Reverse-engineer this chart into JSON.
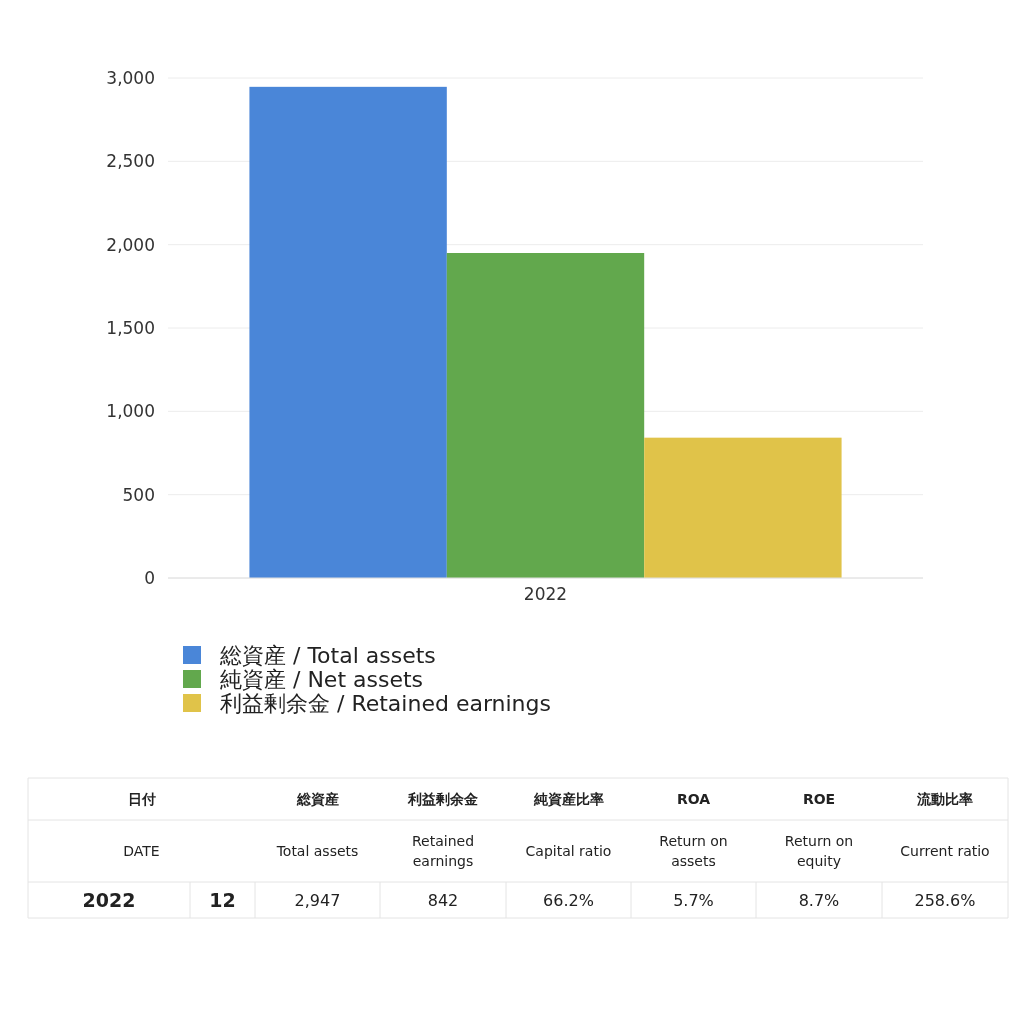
{
  "chart_data": {
    "type": "bar",
    "categories": [
      "2022"
    ],
    "series": [
      {
        "name": "総資産 / Total assets",
        "color": "#4a86d8",
        "values": [
          2947
        ]
      },
      {
        "name": "純資産 / Net assets",
        "color": "#62a84d",
        "values": [
          1950
        ]
      },
      {
        "name": "利益剰余金 / Retained earnings",
        "color": "#e0c349",
        "values": [
          842
        ]
      }
    ],
    "ylim": [
      0,
      3000
    ],
    "yticks": [
      {
        "value": 0,
        "label": "0"
      },
      {
        "value": 500,
        "label": "500"
      },
      {
        "value": 1000,
        "label": "1,000"
      },
      {
        "value": 1500,
        "label": "1,500"
      },
      {
        "value": 2000,
        "label": "2,000"
      },
      {
        "value": 2500,
        "label": "2,500"
      },
      {
        "value": 3000,
        "label": "3,000"
      }
    ],
    "grid": "y",
    "legend": "bottom",
    "annotations": [
      "日付",
      "総資産",
      "利益剰余金",
      "純資産比率",
      "ROA",
      "ROE",
      "流動比率",
      "DATE",
      "Total assets",
      "Retained earnings",
      "Capital ratio",
      "Return on assets",
      "Return on equity",
      "Current ratio",
      "2022",
      "12",
      "2,947",
      "842",
      "66.2%",
      "5.7%",
      "8.7%",
      "258.6%"
    ]
  }
}
